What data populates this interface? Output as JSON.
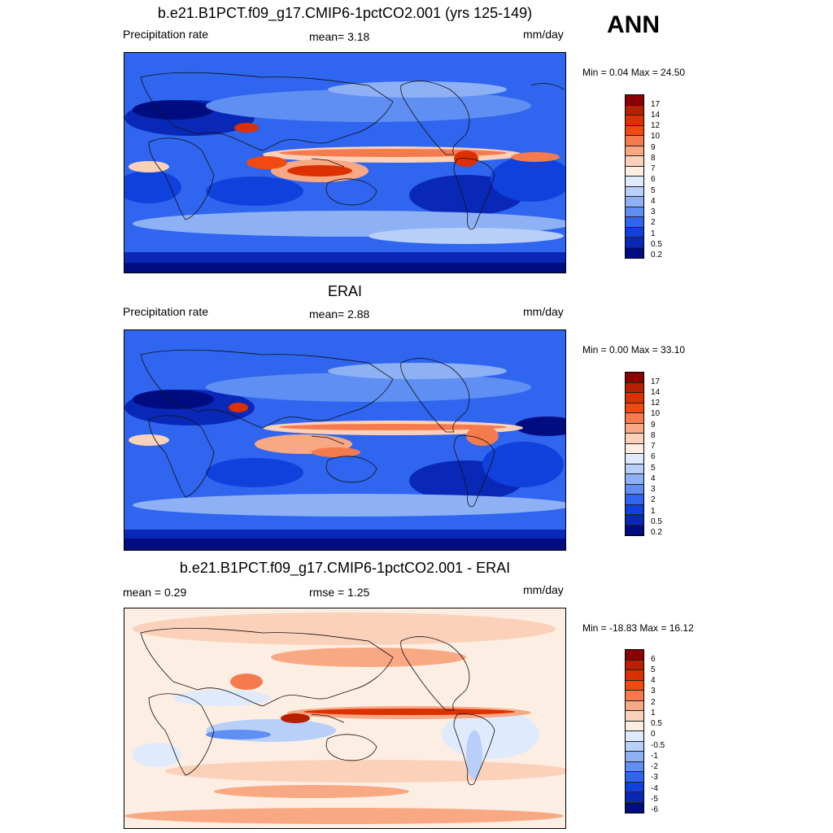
{
  "season": "ANN",
  "panels": [
    {
      "title": "b.e21.B1PCT.f09_g17.CMIP6-1pctCO2.001 (yrs 125-149)",
      "left_label": "Precipitation rate",
      "mid_label": "mean=   3.18",
      "units": "mm/day",
      "minmax": "Min =   0.04 Max =  24.50",
      "type": "precip"
    },
    {
      "title": "ERAI",
      "left_label": "Precipitation rate",
      "mid_label": "mean=   2.88",
      "units": "mm/day",
      "minmax": "Min =   0.00 Max =  33.10",
      "type": "precip"
    },
    {
      "title": "b.e21.B1PCT.f09_g17.CMIP6-1pctCO2.001 - ERAI",
      "left_label": "mean =   0.29",
      "mid_label": "rmse =   1.25",
      "units": "mm/day",
      "minmax": "Min = -18.83 Max =  16.12",
      "type": "diff"
    }
  ],
  "colorbar_precip": {
    "ticks": [
      "17",
      "14",
      "12",
      "10",
      "9",
      "8",
      "7",
      "6",
      "5",
      "4",
      "3",
      "2",
      "1",
      "0.5",
      "0.2"
    ],
    "colors": [
      "#8b0000",
      "#b81e00",
      "#dd3000",
      "#f04a10",
      "#f57b4e",
      "#f8a883",
      "#fbd1ba",
      "#fdeee3",
      "#dfeafc",
      "#b7cff9",
      "#8eb1f5",
      "#5f8ff3",
      "#2f65ef",
      "#1041dd",
      "#0a28b8",
      "#000d80"
    ]
  },
  "colorbar_diff": {
    "ticks": [
      "6",
      "5",
      "4",
      "3",
      "2",
      "1",
      "0.5",
      "0",
      "-0.5",
      "-1",
      "-2",
      "-3",
      "-4",
      "-5",
      "-6"
    ],
    "colors": [
      "#8b0000",
      "#b81e00",
      "#dd3000",
      "#f04a10",
      "#f57b4e",
      "#f8a883",
      "#fbd1ba",
      "#fdeee3",
      "#dfeafc",
      "#b7cff9",
      "#8eb1f5",
      "#5f8ff3",
      "#2f65ef",
      "#1041dd",
      "#0a28b8",
      "#000d80"
    ]
  }
}
